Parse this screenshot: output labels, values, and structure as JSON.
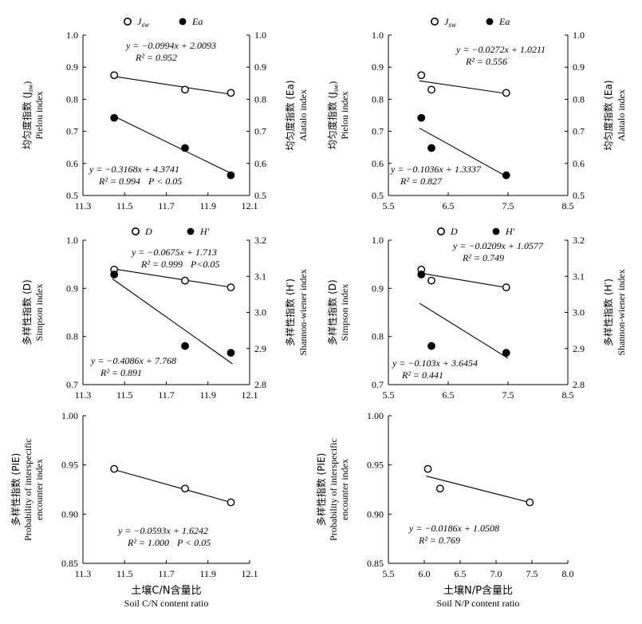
{
  "chart_data": [
    {
      "id": "cn_evenness",
      "type": "scatter",
      "x": [
        11.45,
        11.79,
        12.01
      ],
      "xlim": [
        11.3,
        12.1
      ],
      "xticks": [
        "11.3",
        "11.5",
        "11.7",
        "11.9",
        "12.1"
      ],
      "ylim": [
        0.5,
        1.0
      ],
      "yticks": [
        "0.5",
        "0.6",
        "0.7",
        "0.8",
        "0.9",
        "1.0"
      ],
      "y2lim": [
        0.5,
        1.0
      ],
      "y2ticks": [
        "0.5",
        "0.6",
        "0.7",
        "0.8",
        "0.9",
        "1.0"
      ],
      "ylabel_cn": "均匀度指数 (J",
      "ylabel_cn_sub": "sw",
      "ylabel_cn_end": ")",
      "ylabel_en": "Pielou index",
      "y2label_cn": "均匀度指数 (Ea)",
      "y2label_en": "Alatalo index",
      "series": [
        {
          "name": "J",
          "name_sub": "sw",
          "marker": "open",
          "axis": "left",
          "values": [
            0.875,
            0.83,
            0.82
          ],
          "fit": [
            -0.0994,
            2.0093
          ]
        },
        {
          "name": "Ea",
          "marker": "filled",
          "axis": "right",
          "values": [
            0.742,
            0.648,
            0.563
          ],
          "fit": [
            -0.3168,
            4.3741
          ]
        }
      ],
      "equations": [
        {
          "eq": "y = −0.0994x + 2.0093",
          "r2": "R² = 0.952",
          "p": ""
        },
        {
          "eq": "y = −0.3168x + 4.3741",
          "r2": "R² = 0.994",
          "p": "P < 0.05"
        }
      ]
    },
    {
      "id": "np_evenness",
      "type": "scatter",
      "x": [
        6.05,
        6.22,
        7.47
      ],
      "xlim": [
        5.5,
        8.5
      ],
      "xticks": [
        "5.5",
        "6.5",
        "7.5",
        "8.5"
      ],
      "ylim": [
        0.5,
        1.0
      ],
      "yticks": [
        "0.5",
        "0.6",
        "0.7",
        "0.8",
        "0.9",
        "1.0"
      ],
      "y2lim": [
        0.5,
        1.0
      ],
      "y2ticks": [
        "0.5",
        "0.6",
        "0.7",
        "0.8",
        "0.9",
        "1.0"
      ],
      "ylabel_cn": "均匀度指数 (J",
      "ylabel_cn_sub": "sw",
      "ylabel_cn_end": ")",
      "ylabel_en": "Pielou index",
      "y2label_cn": "均匀度指数 (Ea)",
      "y2label_en": "Alatalo index",
      "series": [
        {
          "name": "J",
          "name_sub": "sw",
          "marker": "open",
          "axis": "left",
          "values": [
            0.875,
            0.83,
            0.82
          ],
          "fit": [
            -0.0272,
            1.0211
          ]
        },
        {
          "name": "Ea",
          "marker": "filled",
          "axis": "right",
          "values": [
            0.742,
            0.648,
            0.563
          ],
          "fit": [
            -0.1036,
            1.3337
          ]
        }
      ],
      "equations": [
        {
          "eq": "y = −0.0272x + 1.0211",
          "r2": "R² = 0.556",
          "p": ""
        },
        {
          "eq": "y = −0.1036x + 1.3337",
          "r2": "R² = 0.827",
          "p": ""
        }
      ]
    },
    {
      "id": "cn_diversity",
      "type": "scatter",
      "x": [
        11.45,
        11.79,
        12.01
      ],
      "xlim": [
        11.3,
        12.1
      ],
      "xticks": [
        "11.3",
        "11.5",
        "11.7",
        "11.9",
        "12.1"
      ],
      "ylim": [
        0.7,
        1.0
      ],
      "yticks": [
        "0.7",
        "0.8",
        "0.9",
        "1.0"
      ],
      "y2lim": [
        2.8,
        3.2
      ],
      "y2ticks": [
        "2.8",
        "2.9",
        "3.0",
        "3.1",
        "3.2"
      ],
      "ylabel_cn": "多样性指数 (D)",
      "ylabel_cn_sub": "",
      "ylabel_cn_end": "",
      "ylabel_en": "Simpson index",
      "y2label_cn": "多样性指数 (H′)",
      "y2label_en": "Shannon-wiener index",
      "series": [
        {
          "name": "D",
          "name_sub": "",
          "marker": "open",
          "axis": "left",
          "values": [
            0.939,
            0.916,
            0.902
          ],
          "fit": [
            -0.0675,
            1.713
          ]
        },
        {
          "name": "H′",
          "marker": "filled",
          "axis": "right",
          "values": [
            3.105,
            2.907,
            2.888
          ],
          "fit": [
            -0.4086,
            7.768
          ]
        }
      ],
      "equations": [
        {
          "eq": "y = −0.0675x + 1.713",
          "r2": "R² = 0.999",
          "p": "P<0.05"
        },
        {
          "eq": "y = −0.4086x + 7.768",
          "r2": "R² = 0.891",
          "p": ""
        }
      ]
    },
    {
      "id": "np_diversity",
      "type": "scatter",
      "x": [
        6.05,
        6.22,
        7.47
      ],
      "xlim": [
        5.5,
        8.5
      ],
      "xticks": [
        "5.5",
        "6.5",
        "7.5",
        "8.5"
      ],
      "ylim": [
        0.7,
        1.0
      ],
      "yticks": [
        "0.7",
        "0.8",
        "0.9",
        "1.0"
      ],
      "y2lim": [
        2.8,
        3.2
      ],
      "y2ticks": [
        "2.8",
        "2.9",
        "3.0",
        "3.1",
        "3.2"
      ],
      "ylabel_cn": "多样性指数 (D)",
      "ylabel_cn_sub": "",
      "ylabel_cn_end": "",
      "ylabel_en": "Simpson index",
      "y2label_cn": "多样性指数 (H′)",
      "y2label_en": "Shannon-wiener index",
      "series": [
        {
          "name": "D",
          "name_sub": "",
          "marker": "open",
          "axis": "left",
          "values": [
            0.939,
            0.916,
            0.902
          ],
          "fit": [
            -0.0209,
            1.0577
          ]
        },
        {
          "name": "H′",
          "marker": "filled",
          "axis": "right",
          "values": [
            3.105,
            2.907,
            2.888
          ],
          "fit": [
            -0.103,
            3.6454
          ]
        }
      ],
      "equations": [
        {
          "eq": "y = −0.0209x + 1.0577",
          "r2": "R² = 0.749",
          "p": ""
        },
        {
          "eq": "y = −0.103x + 3.6454",
          "r2": "R² = 0.441",
          "p": ""
        }
      ]
    },
    {
      "id": "cn_pie",
      "type": "scatter",
      "x": [
        11.45,
        11.79,
        12.01
      ],
      "xlim": [
        11.3,
        12.1
      ],
      "xticks": [
        "11.3",
        "11.5",
        "11.7",
        "11.9",
        "12.1"
      ],
      "ylim": [
        0.85,
        1.0
      ],
      "yticks": [
        "0.85",
        "0.90",
        "0.95",
        "1.00"
      ],
      "ylabel_cn": "多样性指数 (PIE)",
      "ylabel_cn_sub": "",
      "ylabel_cn_end": "",
      "ylabel_en": "Probability of interspecific",
      "ylabel_en2": "encounter index",
      "xlabel_cn": "土壤C/N含量比",
      "xlabel_en": "Soil C/N content ratio",
      "series": [
        {
          "name": "",
          "marker": "open",
          "axis": "left",
          "values": [
            0.946,
            0.926,
            0.912
          ],
          "fit": [
            -0.0593,
            1.6242
          ]
        }
      ],
      "equations": [
        {
          "eq": "y = −0.0593x + 1.6242",
          "r2": "R² = 1.000",
          "p": "P < 0.05"
        }
      ]
    },
    {
      "id": "np_pie",
      "type": "scatter",
      "x": [
        6.05,
        6.22,
        7.47
      ],
      "xlim": [
        5.5,
        8.0
      ],
      "xticks": [
        "5.5",
        "6.0",
        "6.5",
        "7.0",
        "7.5",
        "8.0"
      ],
      "ylim": [
        0.85,
        1.0
      ],
      "yticks": [
        "0.85",
        "0.90",
        "0.95",
        "1.00"
      ],
      "ylabel_cn": "多样性指数 (PIE)",
      "ylabel_cn_sub": "",
      "ylabel_cn_end": "",
      "ylabel_en": "Probability of interspecific",
      "ylabel_en2": "encounter index",
      "xlabel_cn": "土壤N/P含量比",
      "xlabel_en": "Soil N/P content ratio",
      "series": [
        {
          "name": "",
          "marker": "open",
          "axis": "left",
          "values": [
            0.946,
            0.926,
            0.912
          ],
          "fit": [
            -0.0186,
            1.0508
          ]
        }
      ],
      "equations": [
        {
          "eq": "y = −0.0186x + 1.0508",
          "r2": "R² = 0.769",
          "p": ""
        }
      ]
    }
  ]
}
